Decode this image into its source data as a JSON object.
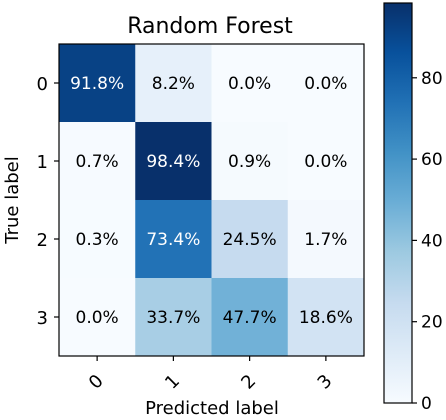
{
  "chart_data": {
    "type": "heatmap",
    "title": "Random Forest",
    "xlabel": "Predicted label",
    "ylabel": "True label",
    "x_categories": [
      "0",
      "1",
      "2",
      "3"
    ],
    "y_categories": [
      "0",
      "1",
      "2",
      "3"
    ],
    "values": [
      [
        91.8,
        8.2,
        0.0,
        0.0
      ],
      [
        0.7,
        98.4,
        0.9,
        0.0
      ],
      [
        0.3,
        73.4,
        24.5,
        1.7
      ],
      [
        0.0,
        33.7,
        47.7,
        18.6
      ]
    ],
    "cell_labels": [
      [
        "91.8%",
        "8.2%",
        "0.0%",
        "0.0%"
      ],
      [
        "0.7%",
        "98.4%",
        "0.9%",
        "0.0%"
      ],
      [
        "0.3%",
        "73.4%",
        "24.5%",
        "1.7%"
      ],
      [
        "0.0%",
        "33.7%",
        "47.7%",
        "18.6%"
      ]
    ],
    "colorbar": {
      "range": [
        0,
        98.4
      ],
      "ticks": [
        0,
        20,
        40,
        60,
        80
      ],
      "tick_labels": [
        "0",
        "20",
        "40",
        "60",
        "80"
      ],
      "colormap": "Blues"
    },
    "colors": {
      "low": "#f7fbff",
      "high": "#08306b",
      "text_dark": "#000000",
      "text_light": "#ffffff"
    }
  }
}
